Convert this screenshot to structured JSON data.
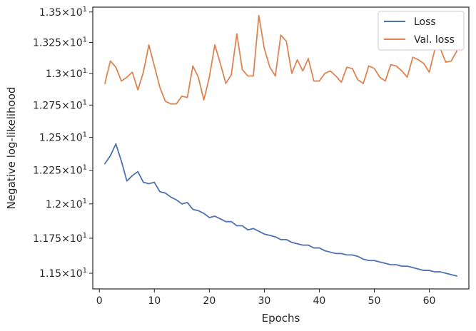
{
  "chart_data": {
    "type": "line",
    "xlabel": "Epochs",
    "ylabel": "Negative log-likelihood",
    "xlim": [
      -1.2,
      67.2
    ],
    "ylim": [
      11.39,
      13.54
    ],
    "y_scale": "log",
    "grid": false,
    "legend_position": "top-right",
    "x_ticks": [
      {
        "value": 0,
        "label": "0"
      },
      {
        "value": 10,
        "label": "10"
      },
      {
        "value": 20,
        "label": "20"
      },
      {
        "value": 30,
        "label": "30"
      },
      {
        "value": 40,
        "label": "40"
      },
      {
        "value": 50,
        "label": "50"
      },
      {
        "value": 60,
        "label": "60"
      }
    ],
    "y_ticks": [
      {
        "value": 11.5,
        "mant": "1.15",
        "exp": "1"
      },
      {
        "value": 11.75,
        "mant": "1.175",
        "exp": "1"
      },
      {
        "value": 12.0,
        "mant": "1.2",
        "exp": "1"
      },
      {
        "value": 12.25,
        "mant": "1.225",
        "exp": "1"
      },
      {
        "value": 12.5,
        "mant": "1.25",
        "exp": "1"
      },
      {
        "value": 12.75,
        "mant": "1.275",
        "exp": "1"
      },
      {
        "value": 13.0,
        "mant": "1.3",
        "exp": "1"
      },
      {
        "value": 13.25,
        "mant": "1.325",
        "exp": "1"
      },
      {
        "value": 13.5,
        "mant": "1.35",
        "exp": "1"
      }
    ],
    "series": [
      {
        "name": "Loss",
        "color": "#4c72b0",
        "x": [
          1,
          2,
          3,
          4,
          5,
          6,
          7,
          8,
          9,
          10,
          11,
          12,
          13,
          14,
          15,
          16,
          17,
          18,
          19,
          20,
          21,
          22,
          23,
          24,
          25,
          26,
          27,
          28,
          29,
          30,
          31,
          32,
          33,
          34,
          35,
          36,
          37,
          38,
          39,
          40,
          41,
          42,
          43,
          44,
          45,
          46,
          47,
          48,
          49,
          50,
          51,
          52,
          53,
          54,
          55,
          56,
          57,
          58,
          59,
          60,
          61,
          62,
          63,
          64,
          65
        ],
        "values": [
          12.3,
          12.36,
          12.45,
          12.32,
          12.17,
          12.21,
          12.24,
          12.16,
          12.15,
          12.16,
          12.09,
          12.08,
          12.05,
          12.03,
          12.0,
          12.01,
          11.96,
          11.95,
          11.93,
          11.9,
          11.91,
          11.89,
          11.87,
          11.87,
          11.84,
          11.84,
          11.81,
          11.82,
          11.8,
          11.78,
          11.77,
          11.76,
          11.74,
          11.74,
          11.72,
          11.71,
          11.7,
          11.7,
          11.68,
          11.68,
          11.66,
          11.65,
          11.64,
          11.64,
          11.63,
          11.63,
          11.62,
          11.6,
          11.59,
          11.59,
          11.58,
          11.57,
          11.56,
          11.56,
          11.55,
          11.55,
          11.54,
          11.53,
          11.52,
          11.52,
          11.51,
          11.51,
          11.5,
          11.49,
          11.48
        ]
      },
      {
        "name": "Val. loss",
        "color": "#dd8452",
        "x": [
          1,
          2,
          3,
          4,
          5,
          6,
          7,
          8,
          9,
          10,
          11,
          12,
          13,
          14,
          15,
          16,
          17,
          18,
          19,
          20,
          21,
          22,
          23,
          24,
          25,
          26,
          27,
          28,
          29,
          30,
          31,
          32,
          33,
          34,
          35,
          36,
          37,
          38,
          39,
          40,
          41,
          42,
          43,
          44,
          45,
          46,
          47,
          48,
          49,
          50,
          51,
          52,
          53,
          54,
          55,
          56,
          57,
          58,
          59,
          60,
          61,
          62,
          63,
          64,
          65
        ],
        "values": [
          12.92,
          13.1,
          13.05,
          12.94,
          12.97,
          13.01,
          12.87,
          13.01,
          13.23,
          13.06,
          12.89,
          12.78,
          12.76,
          12.76,
          12.82,
          12.81,
          13.06,
          12.97,
          12.79,
          12.97,
          13.23,
          13.08,
          12.92,
          12.99,
          13.32,
          13.03,
          12.98,
          12.98,
          13.47,
          13.2,
          13.05,
          12.98,
          13.31,
          13.26,
          13.0,
          13.11,
          13.02,
          13.12,
          12.94,
          12.94,
          13.0,
          13.02,
          12.98,
          12.93,
          13.05,
          13.04,
          12.95,
          12.92,
          13.06,
          13.04,
          12.97,
          12.94,
          13.07,
          13.06,
          13.02,
          12.97,
          13.13,
          13.11,
          13.08,
          13.01,
          13.19,
          13.2,
          13.09,
          13.1,
          13.18
        ]
      }
    ]
  }
}
